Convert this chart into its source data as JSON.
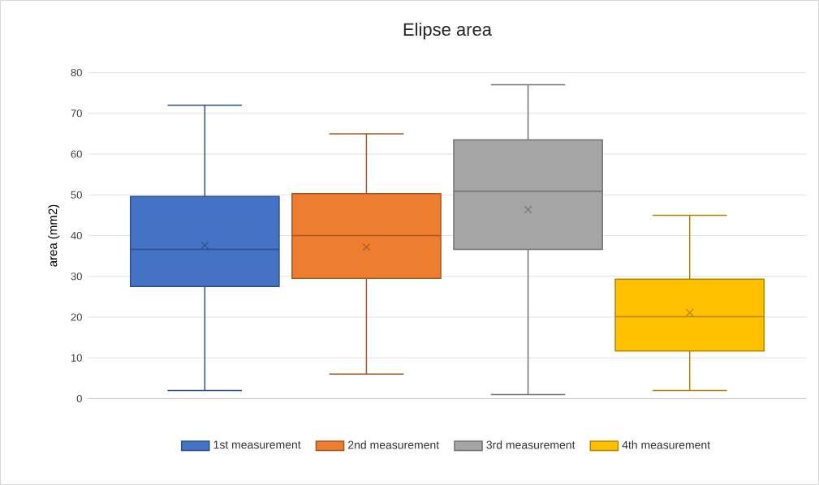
{
  "chart_data": {
    "type": "box",
    "title": "Elipse area",
    "ylabel": "area (mm2)",
    "categories": [
      null
    ],
    "series": [
      {
        "name": "1st measurement",
        "color": "#4472c4",
        "boxes": [
          {
            "low": 2,
            "q1": 27.5,
            "median": 36.6,
            "q3": 49.6,
            "high": 72,
            "mean": 37.6
          }
        ]
      },
      {
        "name": "2nd measurement",
        "color": "#ed7d31",
        "boxes": [
          {
            "low": 6,
            "q1": 29.5,
            "median": 40,
            "q3": 50.3,
            "high": 65,
            "mean": 37.2
          }
        ]
      },
      {
        "name": "3rd measurement",
        "color": "#a5a5a5",
        "boxes": [
          {
            "low": 1,
            "q1": 36.6,
            "median": 50.9,
            "q3": 63.5,
            "high": 77,
            "mean": 46.4
          }
        ]
      },
      {
        "name": "4th measurement",
        "color": "#ffc000",
        "boxes": [
          {
            "low": 2,
            "q1": 11.7,
            "median": 20.1,
            "q3": 29.3,
            "high": 45,
            "mean": 21.1
          }
        ]
      }
    ],
    "ylim": [
      0,
      80
    ],
    "yticks": [
      0,
      10,
      20,
      30,
      40,
      50,
      60,
      70,
      80
    ],
    "grid": "y",
    "legend": "bottom"
  }
}
